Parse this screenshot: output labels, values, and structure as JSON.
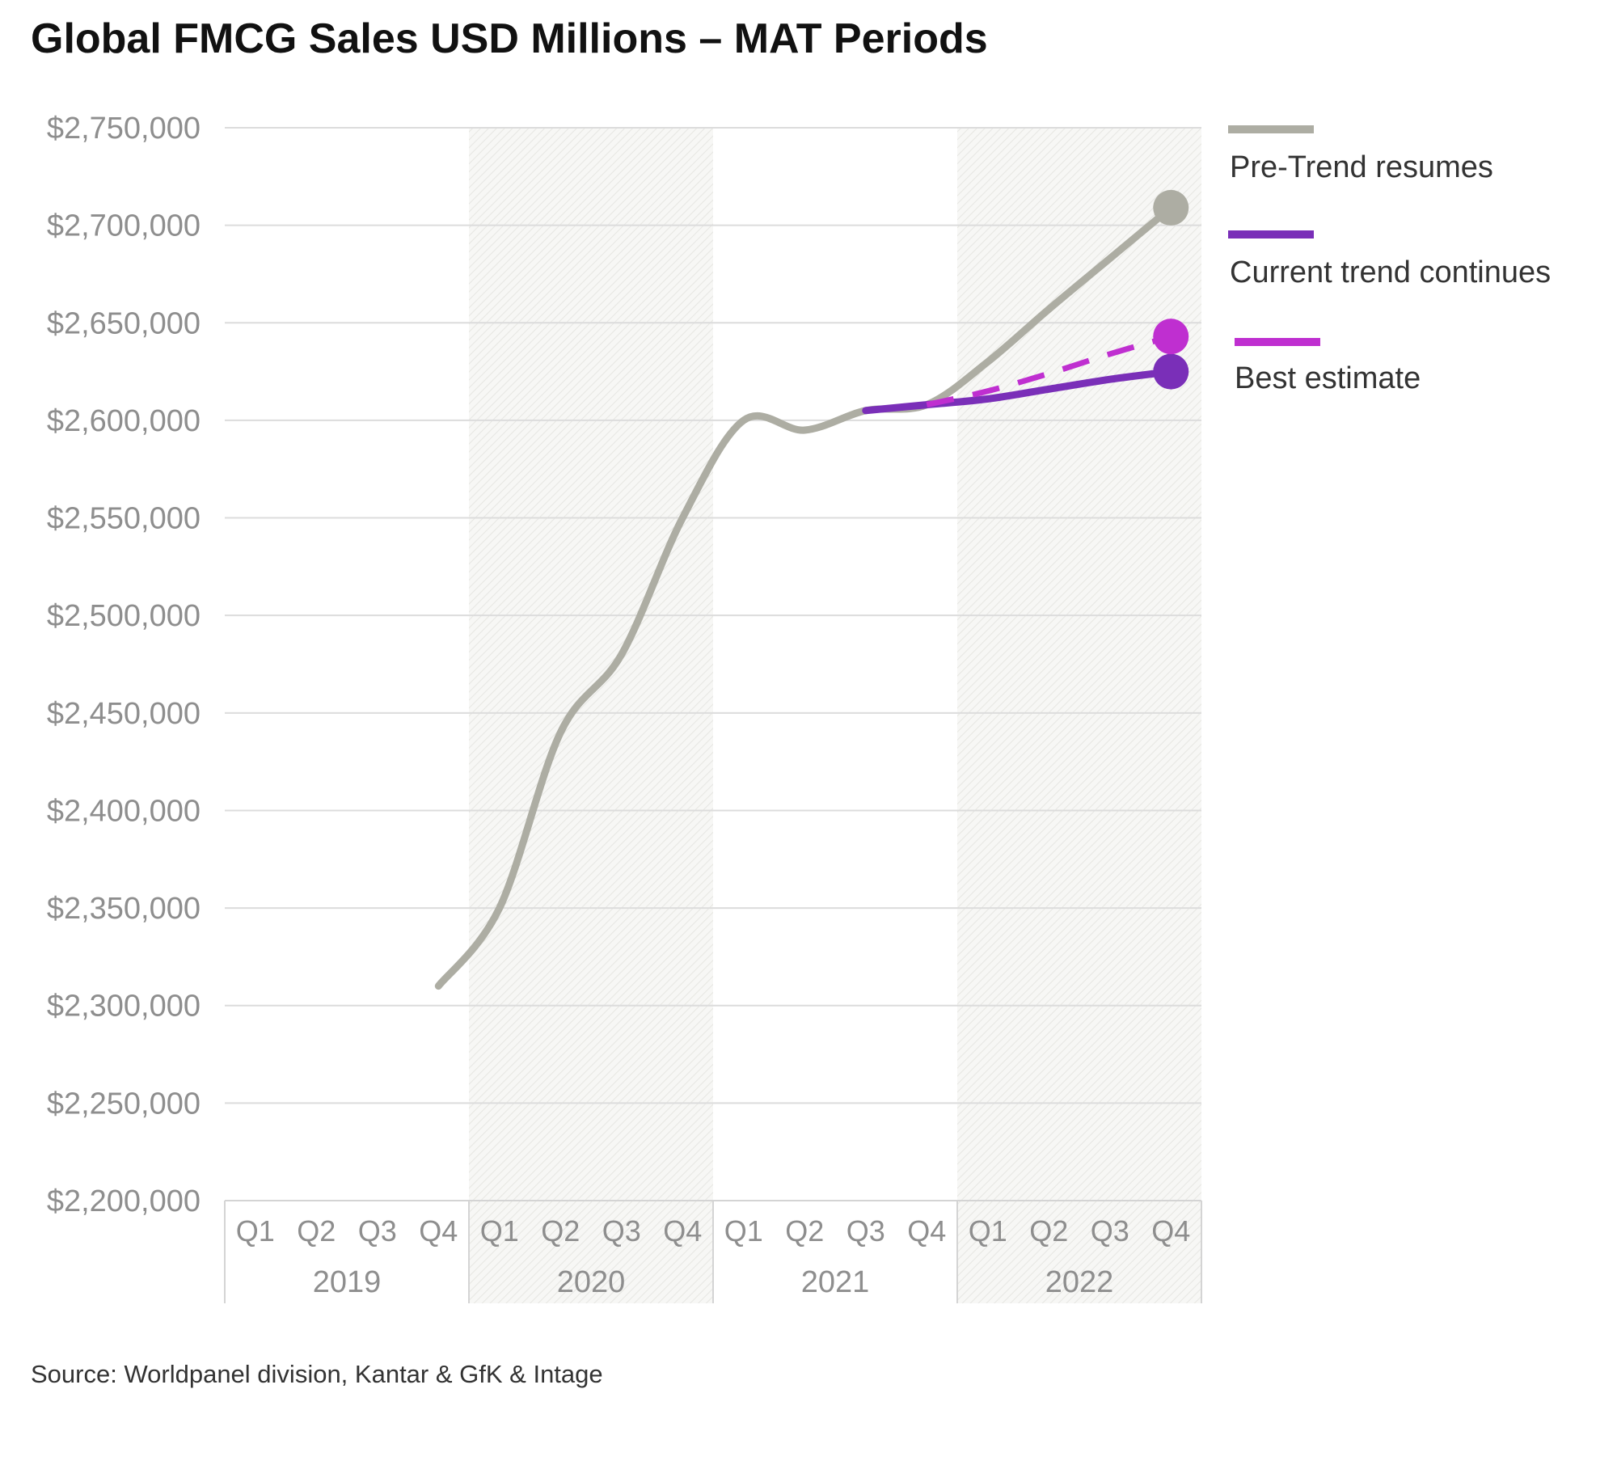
{
  "chart_data": {
    "type": "line",
    "title": "Global FMCG Sales USD Millions – MAT Periods",
    "source": "Source: Worldpanel division, Kantar & GfK & Intage",
    "ylim": [
      2200000,
      2750000
    ],
    "y_ticks": [
      2200000,
      2250000,
      2300000,
      2350000,
      2400000,
      2450000,
      2500000,
      2550000,
      2600000,
      2650000,
      2700000,
      2750000
    ],
    "y_tick_labels": [
      "$2,200,000",
      "$2,250,000",
      "$2,300,000",
      "$2,350,000",
      "$2,400,000",
      "$2,450,000",
      "$2,500,000",
      "$2,550,000",
      "$2,600,000",
      "$2,650,000",
      "$2,700,000",
      "$2,750,000"
    ],
    "grid": true,
    "legend_position": "right",
    "shaded_years": [
      "2020",
      "2022"
    ],
    "groups": [
      {
        "year": "2019",
        "quarters": [
          "Q1",
          "Q2",
          "Q3",
          "Q4"
        ]
      },
      {
        "year": "2020",
        "quarters": [
          "Q1",
          "Q2",
          "Q3",
          "Q4"
        ]
      },
      {
        "year": "2021",
        "quarters": [
          "Q1",
          "Q2",
          "Q3",
          "Q4"
        ]
      },
      {
        "year": "2022",
        "quarters": [
          "Q1",
          "Q2",
          "Q3",
          "Q4"
        ]
      }
    ],
    "series": [
      {
        "name": "Pre-Trend resumes",
        "color": "#adada3",
        "style": "solid",
        "end_marker": true,
        "points": [
          {
            "x": "2019 Q4",
            "y": 2310000
          },
          {
            "x": "2020 Q1",
            "y": 2350000
          },
          {
            "x": "2020 Q2",
            "y": 2440000
          },
          {
            "x": "2020 Q3",
            "y": 2480000
          },
          {
            "x": "2020 Q4",
            "y": 2550000
          },
          {
            "x": "2021 Q1",
            "y": 2600000
          },
          {
            "x": "2021 Q2",
            "y": 2595000
          },
          {
            "x": "2021 Q3",
            "y": 2605000
          },
          {
            "x": "2021 Q4",
            "y": 2608000
          },
          {
            "x": "2022 Q1",
            "y": 2630000
          },
          {
            "x": "2022 Q2",
            "y": 2657000
          },
          {
            "x": "2022 Q3",
            "y": 2683000
          },
          {
            "x": "2022 Q4",
            "y": 2709000
          }
        ]
      },
      {
        "name": "Current trend continues",
        "color": "#7a2fb8",
        "style": "solid",
        "end_marker": true,
        "points": [
          {
            "x": "2021 Q3",
            "y": 2605000
          },
          {
            "x": "2021 Q4",
            "y": 2608000
          },
          {
            "x": "2022 Q1",
            "y": 2611000
          },
          {
            "x": "2022 Q2",
            "y": 2616000
          },
          {
            "x": "2022 Q3",
            "y": 2621000
          },
          {
            "x": "2022 Q4",
            "y": 2625000
          }
        ]
      },
      {
        "name": "Best estimate",
        "color": "#bf2fd0",
        "style": "dashed",
        "end_marker": true,
        "points": [
          {
            "x": "2021 Q4",
            "y": 2608000
          },
          {
            "x": "2022 Q1",
            "y": 2615000
          },
          {
            "x": "2022 Q2",
            "y": 2624000
          },
          {
            "x": "2022 Q3",
            "y": 2634000
          },
          {
            "x": "2022 Q4",
            "y": 2643000
          }
        ]
      }
    ]
  }
}
